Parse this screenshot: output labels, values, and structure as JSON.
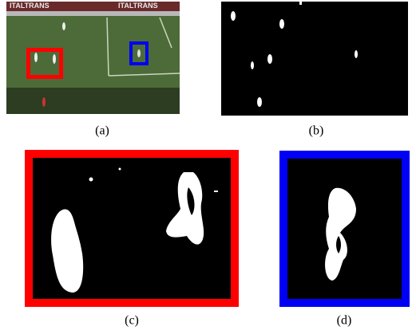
{
  "figure": {
    "panels": [
      {
        "caption": "(a)"
      },
      {
        "caption": "(b)"
      },
      {
        "caption": "(c)"
      },
      {
        "caption": "(d)"
      }
    ],
    "banner_texts": [
      "ITALTRANS",
      "ITALTRANS"
    ]
  }
}
